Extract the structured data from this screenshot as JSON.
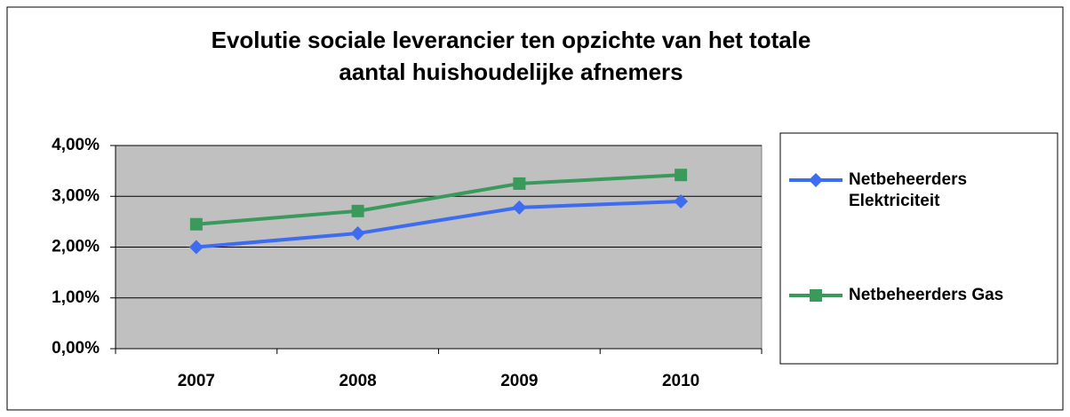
{
  "chart_data": {
    "type": "line",
    "title": [
      "Evolutie sociale leverancier ten opzichte  van het totale",
      "aantal huishoudelijke afnemers"
    ],
    "categories": [
      "2007",
      "2008",
      "2009",
      "2010"
    ],
    "series": [
      {
        "name": "Netbeheerders Elektriciteit",
        "color": "#3d6cf0",
        "marker": "diamond",
        "values": [
          2.0,
          2.27,
          2.78,
          2.9
        ]
      },
      {
        "name": "Netbeheerders Gas",
        "color": "#3a9a5c",
        "marker": "square",
        "values": [
          2.45,
          2.71,
          3.25,
          3.42
        ]
      }
    ],
    "ylim": [
      0,
      4
    ],
    "yticks": [
      {
        "value": 0,
        "label": "0,00%"
      },
      {
        "value": 1,
        "label": "1,00%"
      },
      {
        "value": 2,
        "label": "2,00%"
      },
      {
        "value": 3,
        "label": "3,00%"
      },
      {
        "value": 4,
        "label": "4,00%"
      }
    ],
    "grid": true,
    "legend": "right"
  }
}
